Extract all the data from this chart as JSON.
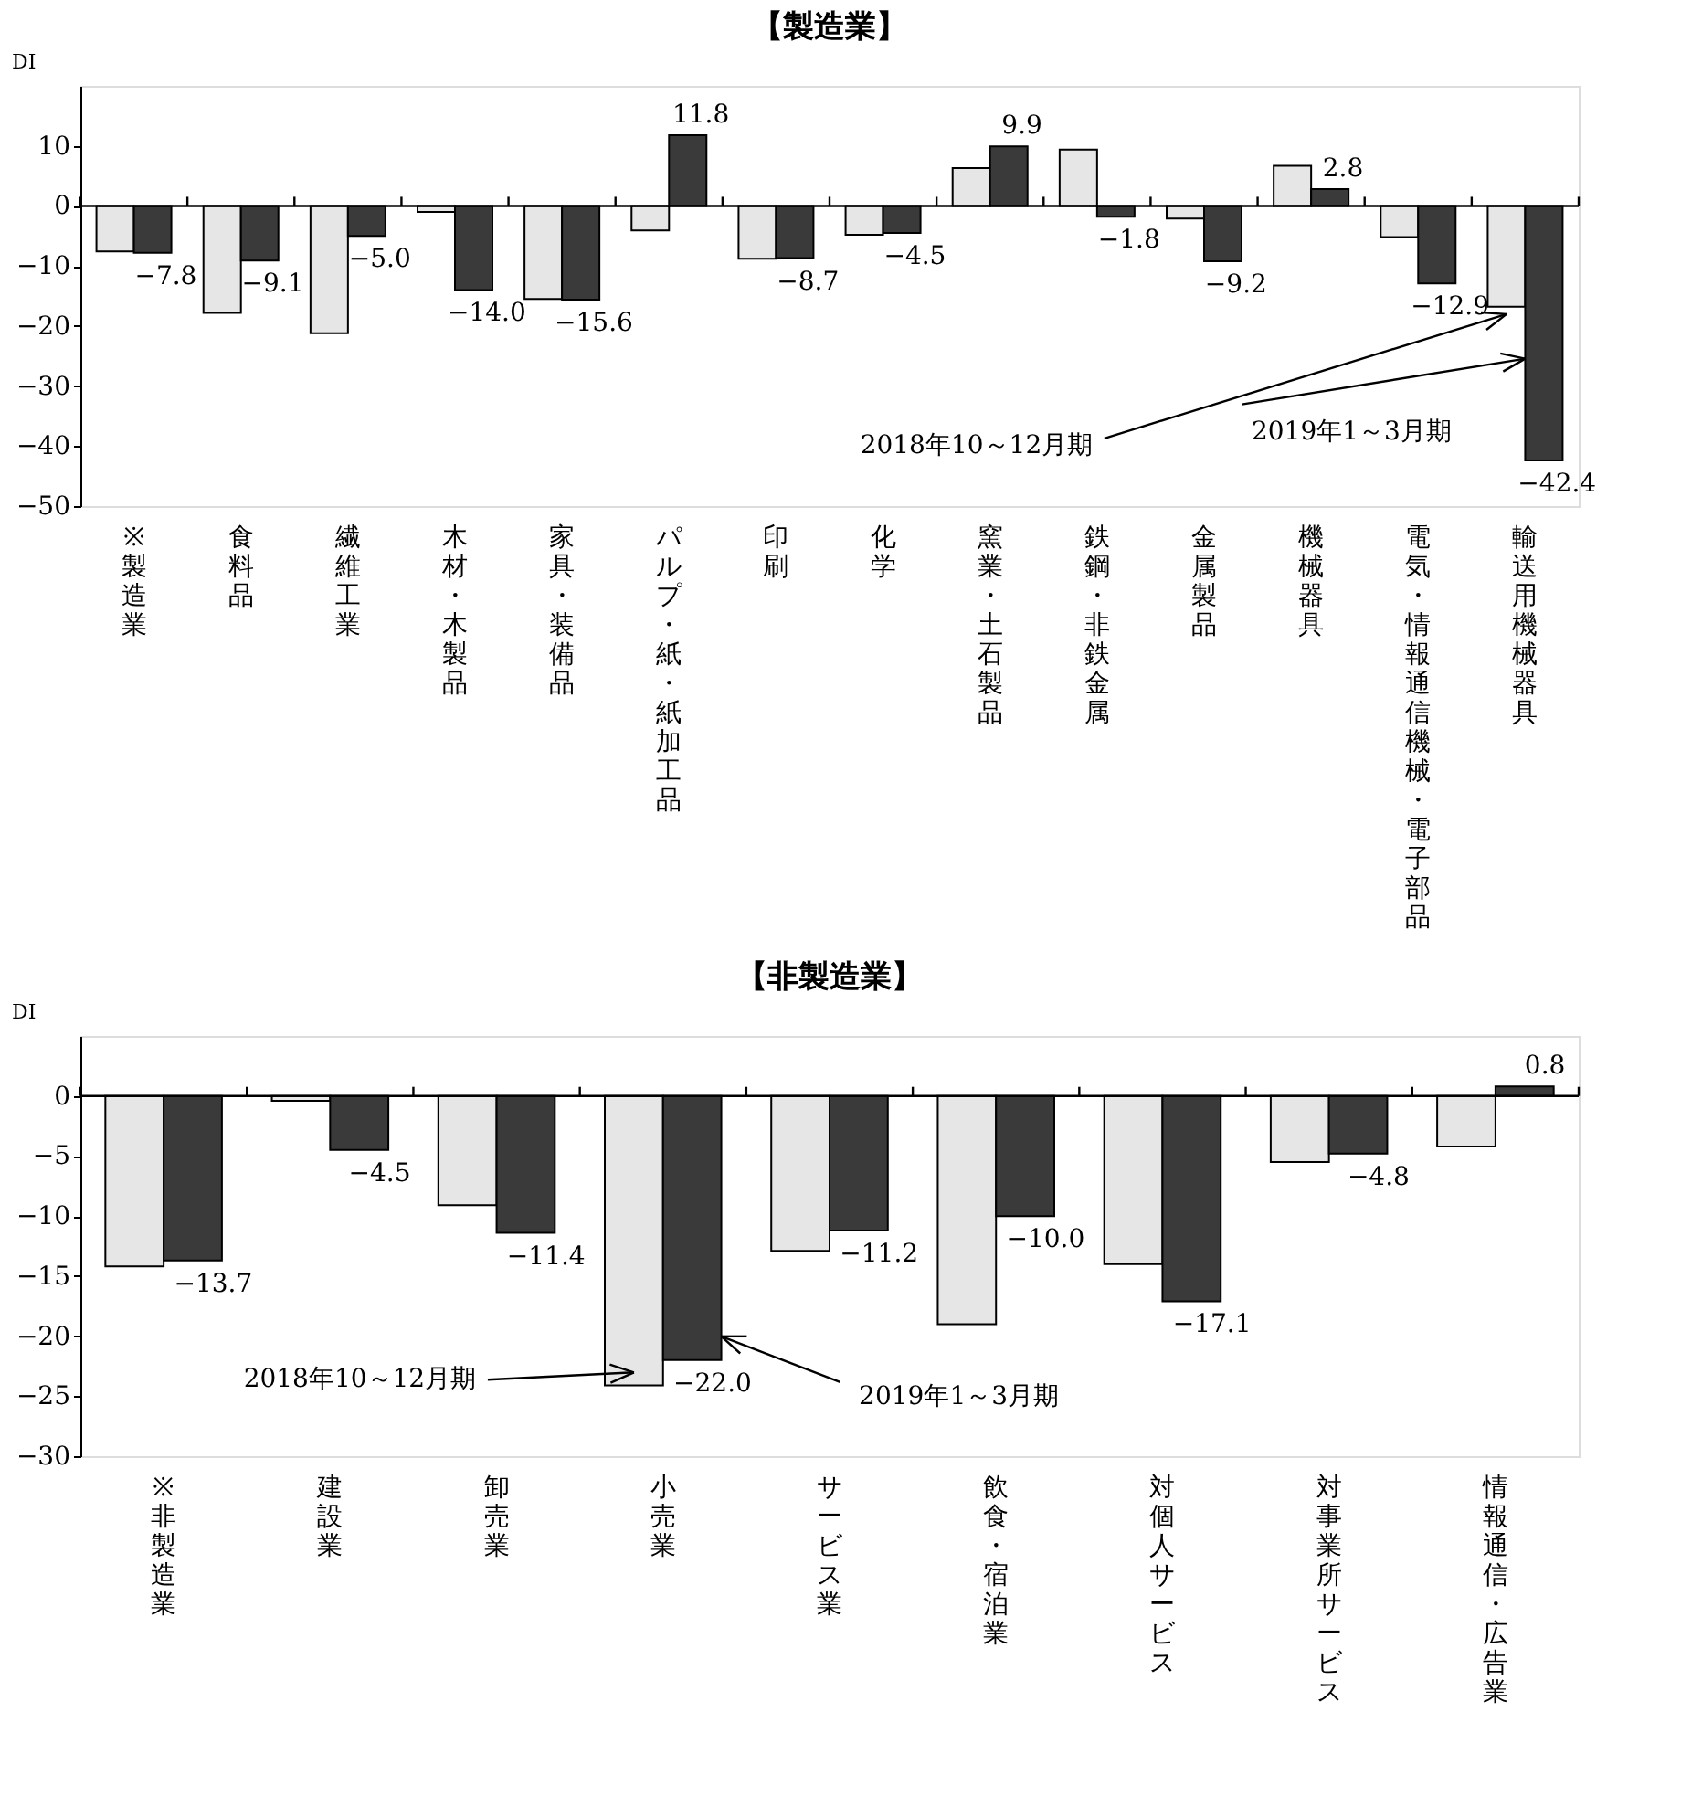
{
  "chart_data": [
    {
      "type": "bar",
      "title": "【製造業】",
      "ylabel": "DI",
      "categories": [
        "※製造業",
        "食料品",
        "繊維工業",
        "木材・木製品",
        "家具・装備品",
        "パルプ・紙・紙加工品",
        "印刷",
        "化学",
        "窯業・土石製品",
        "鉄鋼・非鉄金属",
        "金属製品",
        "機械器具",
        "電気・情報通信機械・電子部品",
        "輸送用機械器具"
      ],
      "series": [
        {
          "name": "2018年10～12月期",
          "color": "#e6e6e6",
          "values": [
            -7.6,
            -17.8,
            -21.2,
            -1.0,
            -15.5,
            -4.1,
            -8.8,
            -4.8,
            6.3,
            9.4,
            -2.1,
            6.7,
            -5.2,
            -16.8
          ]
        },
        {
          "name": "2019年1～3月期",
          "color": "#3a3a3a",
          "values": [
            -7.8,
            -9.1,
            -5.0,
            -14.0,
            -15.6,
            11.8,
            -8.7,
            -4.5,
            9.9,
            -1.8,
            -9.2,
            2.8,
            -12.9,
            -42.4
          ],
          "value_labels": [
            "−7.8",
            "−9.1",
            "−5.0",
            "−14.0",
            "−15.6",
            "11.8",
            "−8.7",
            "−4.5",
            "9.9",
            "−1.8",
            "−9.2",
            "2.8",
            "−12.9",
            "−42.4"
          ]
        }
      ],
      "ylim": [
        -50,
        20
      ],
      "yticks": [
        -50,
        -40,
        -30,
        -20,
        -10,
        0,
        10
      ]
    },
    {
      "type": "bar",
      "title": "【非製造業】",
      "ylabel": "DI",
      "categories": [
        "※非製造業",
        "建設業",
        "卸売業",
        "小売業",
        "サービス業",
        "飲食・宿泊業",
        "対個人サービス",
        "対事業所サービス",
        "情報通信・広告業"
      ],
      "series": [
        {
          "name": "2018年10～12月期",
          "color": "#e6e6e6",
          "values": [
            -14.2,
            -0.4,
            -9.1,
            -24.1,
            -12.9,
            -19.0,
            -14.0,
            -5.5,
            -4.2
          ]
        },
        {
          "name": "2019年1～3月期",
          "color": "#3a3a3a",
          "values": [
            -13.7,
            -4.5,
            -11.4,
            -22.0,
            -11.2,
            -10.0,
            -17.1,
            -4.8,
            0.8
          ],
          "value_labels": [
            "−13.7",
            "−4.5",
            "−11.4",
            "−22.0",
            "−11.2",
            "−10.0",
            "−17.1",
            "−4.8",
            "0.8"
          ]
        }
      ],
      "ylim": [
        -30,
        5
      ],
      "yticks": [
        -30,
        -25,
        -20,
        -15,
        -10,
        -5,
        0
      ]
    }
  ]
}
